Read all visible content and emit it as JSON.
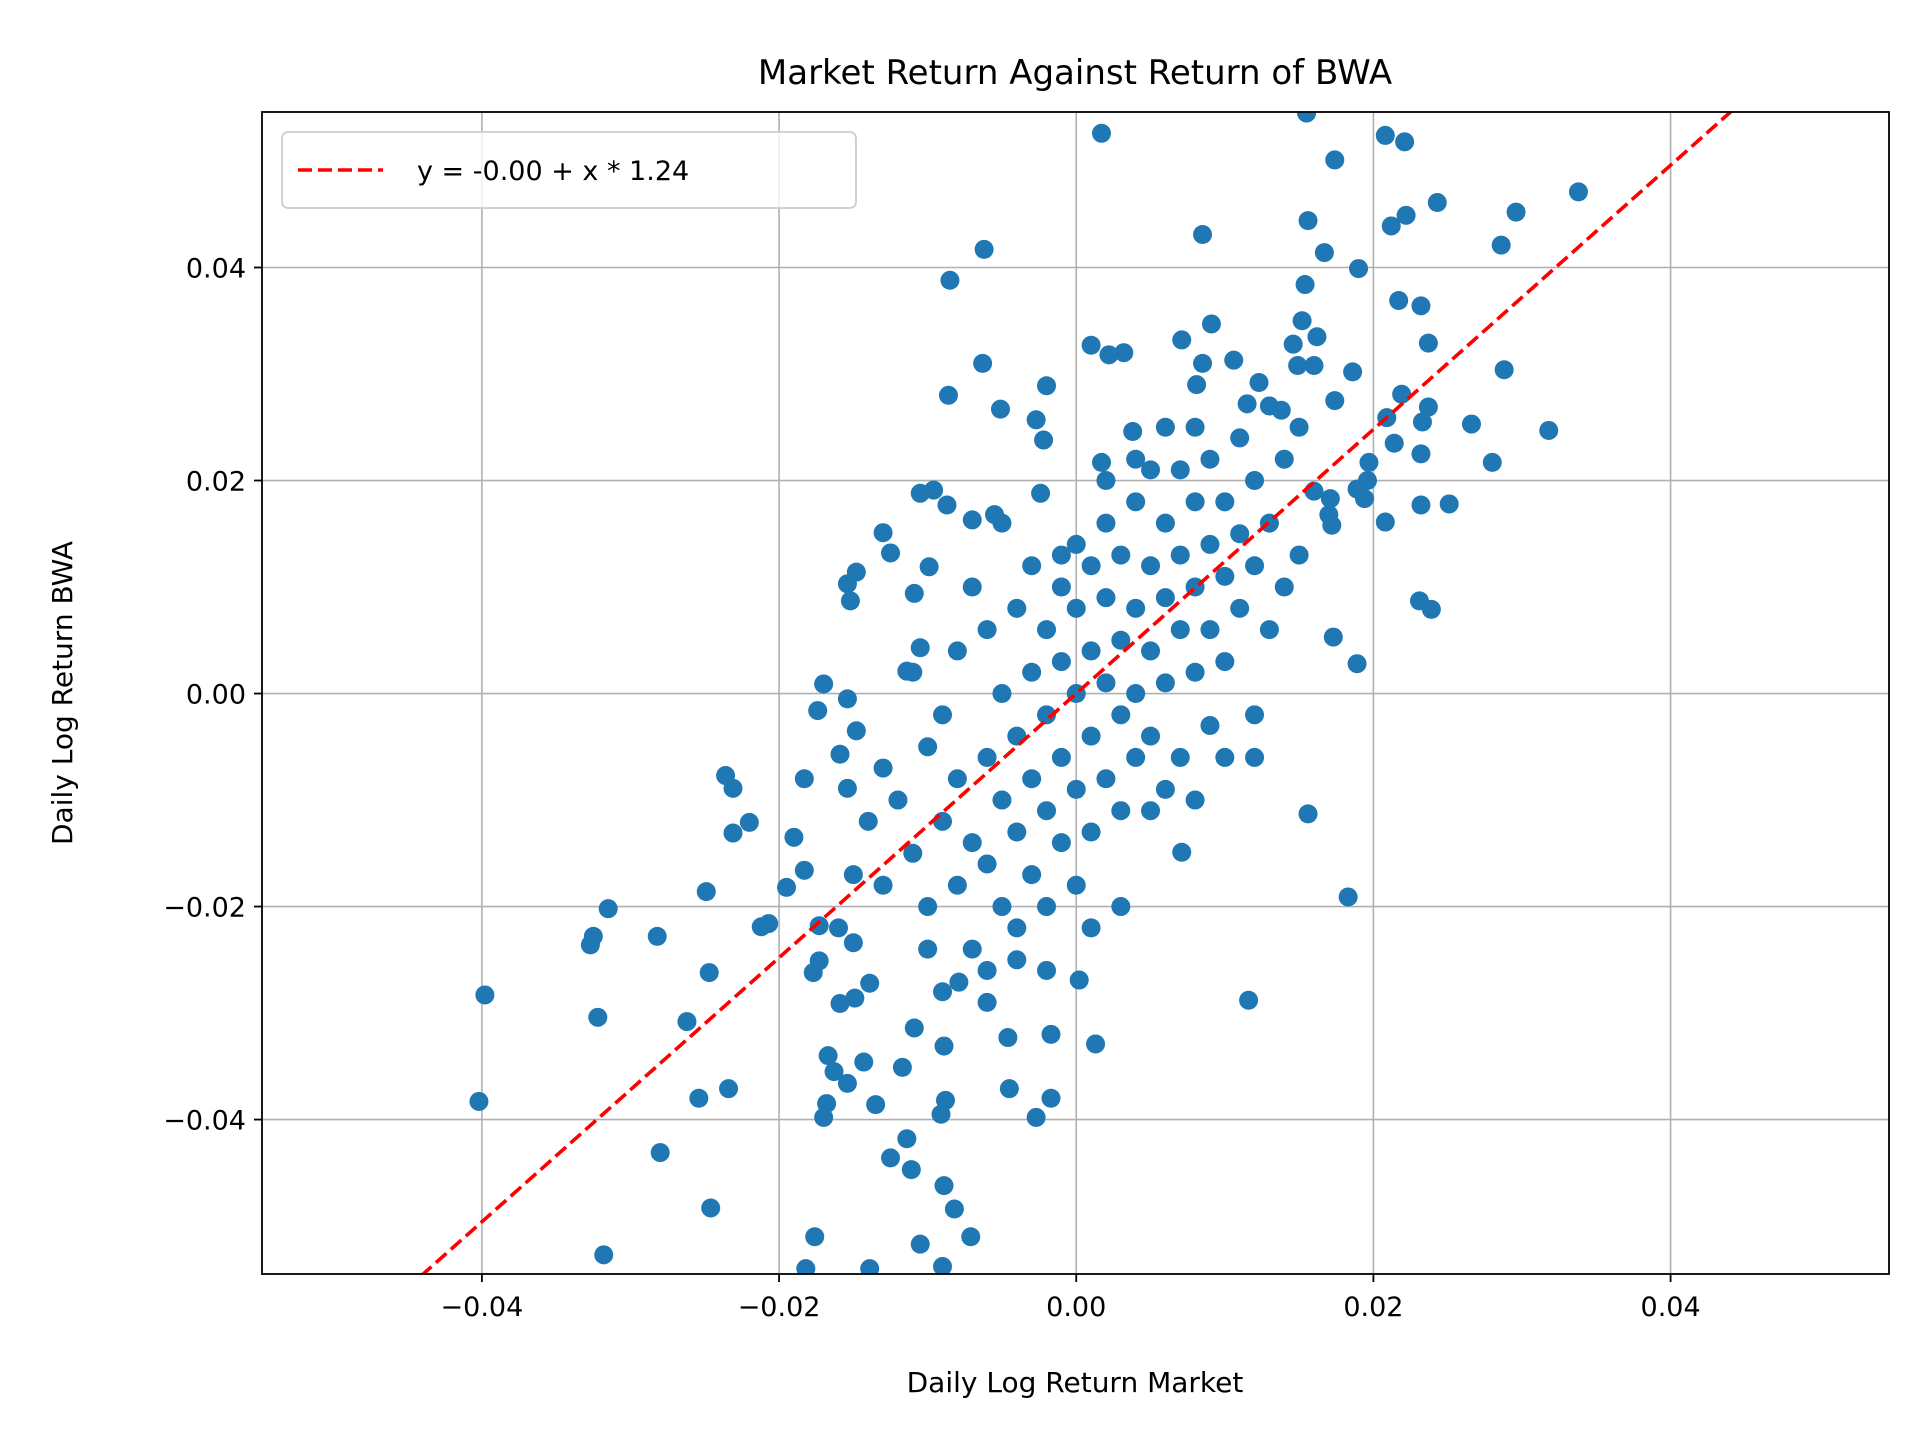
{
  "chart_data": {
    "type": "scatter",
    "title": "Market Return Against Return of BWA",
    "xlabel": "Daily Log Return Market",
    "ylabel": "Daily Log Return BWA",
    "xlim": [
      -0.0548,
      0.0547
    ],
    "ylim": [
      -0.0545,
      0.0546
    ],
    "grid": true,
    "legend_placement": "top-left",
    "xticks": [
      -0.04,
      -0.02,
      0.0,
      0.02,
      0.04
    ],
    "xtick_labels": [
      "−0.04",
      "−0.02",
      "0.00",
      "0.02",
      "0.04"
    ],
    "yticks": [
      -0.04,
      -0.02,
      0.0,
      0.02,
      0.04
    ],
    "ytick_labels": [
      "−0.04",
      "−0.02",
      "0.00",
      "0.02",
      "0.04"
    ],
    "colors": {
      "points": "#1f77b4",
      "fit_line": "#ff0000"
    },
    "fit_line": {
      "label": "y = -0.00 + x * 1.24",
      "intercept": 0.0,
      "slope": 1.24,
      "style": "dashed",
      "x_range": [
        -0.0441,
        0.0441
      ]
    },
    "points": [
      [
        0.0017,
        0.0526
      ],
      [
        0.0155,
        0.0545
      ],
      [
        0.0208,
        0.0524
      ],
      [
        0.0221,
        0.0518
      ],
      [
        0.0174,
        0.0501
      ],
      [
        0.0338,
        0.0471
      ],
      [
        0.0243,
        0.0461
      ],
      [
        0.0296,
        0.0452
      ],
      [
        0.0222,
        0.0449
      ],
      [
        0.0212,
        0.0439
      ],
      [
        0.0156,
        0.0444
      ],
      [
        0.0085,
        0.0431
      ],
      [
        0.0286,
        0.0421
      ],
      [
        -0.0062,
        0.0417
      ],
      [
        0.0167,
        0.0414
      ],
      [
        0.019,
        0.0399
      ],
      [
        -0.0085,
        0.0388
      ],
      [
        0.0154,
        0.0384
      ],
      [
        0.0217,
        0.0369
      ],
      [
        0.0232,
        0.0364
      ],
      [
        0.0091,
        0.0347
      ],
      [
        0.0152,
        0.035
      ],
      [
        0.0162,
        0.0335
      ],
      [
        0.0071,
        0.0332
      ],
      [
        0.0146,
        0.0328
      ],
      [
        0.0237,
        0.0329
      ],
      [
        0.001,
        0.0327
      ],
      [
        0.0032,
        0.032
      ],
      [
        0.0022,
        0.0318
      ],
      [
        -0.0063,
        0.031
      ],
      [
        0.0085,
        0.031
      ],
      [
        0.0106,
        0.0313
      ],
      [
        0.0149,
        0.0308
      ],
      [
        0.016,
        0.0308
      ],
      [
        0.0288,
        0.0304
      ],
      [
        0.0186,
        0.0302
      ],
      [
        0.0123,
        0.0292
      ],
      [
        -0.002,
        0.0289
      ],
      [
        0.0081,
        0.029
      ],
      [
        -0.0086,
        0.028
      ],
      [
        0.0219,
        0.0281
      ],
      [
        0.0115,
        0.0272
      ],
      [
        0.0174,
        0.0275
      ],
      [
        0.0237,
        0.0269
      ],
      [
        -0.0051,
        0.0267
      ],
      [
        0.0138,
        0.0266
      ],
      [
        -0.0027,
        0.0257
      ],
      [
        0.0209,
        0.0259
      ],
      [
        0.0233,
        0.0255
      ],
      [
        0.0266,
        0.0253
      ],
      [
        0.0318,
        0.0247
      ],
      [
        0.0038,
        0.0246
      ],
      [
        -0.0022,
        0.0238
      ],
      [
        0.015,
        0.025
      ],
      [
        0.0214,
        0.0235
      ],
      [
        0.0197,
        0.0217
      ],
      [
        0.0232,
        0.0225
      ],
      [
        0.028,
        0.0217
      ],
      [
        0.0017,
        0.0217
      ],
      [
        0.0196,
        0.02
      ],
      [
        0.0189,
        0.0192
      ],
      [
        0.0194,
        0.0183
      ],
      [
        0.0232,
        0.0177
      ],
      [
        0.0251,
        0.0178
      ],
      [
        -0.0105,
        0.0188
      ],
      [
        -0.0096,
        0.0191
      ],
      [
        -0.0087,
        0.0177
      ],
      [
        -0.0024,
        0.0188
      ],
      [
        -0.007,
        0.0163
      ],
      [
        -0.0055,
        0.0168
      ],
      [
        0.0208,
        0.0161
      ],
      [
        -0.013,
        0.0151
      ],
      [
        -0.0125,
        0.0132
      ],
      [
        0.017,
        0.0168
      ],
      [
        0.0172,
        0.0158
      ],
      [
        0.0171,
        0.0183
      ],
      [
        -0.0099,
        0.0119
      ],
      [
        -0.0148,
        0.0114
      ],
      [
        -0.0154,
        0.0103
      ],
      [
        -0.0152,
        0.0087
      ],
      [
        -0.0109,
        0.0094
      ],
      [
        0.0231,
        0.0087
      ],
      [
        0.0239,
        0.0079
      ],
      [
        0.0173,
        0.0053
      ],
      [
        0.0189,
        0.0028
      ],
      [
        -0.0105,
        0.0043
      ],
      [
        -0.0114,
        0.0021
      ],
      [
        -0.017,
        0.0009
      ],
      [
        -0.0154,
        -0.0005
      ],
      [
        -0.0174,
        -0.0016
      ],
      [
        -0.0148,
        -0.0035
      ],
      [
        -0.0159,
        -0.0057
      ],
      [
        -0.0236,
        -0.0077
      ],
      [
        -0.0231,
        -0.0089
      ],
      [
        -0.0183,
        -0.008
      ],
      [
        -0.0154,
        -0.0089
      ],
      [
        -0.022,
        -0.0121
      ],
      [
        -0.0231,
        -0.0131
      ],
      [
        -0.019,
        -0.0135
      ],
      [
        0.0156,
        -0.0113
      ],
      [
        0.0071,
        -0.0149
      ],
      [
        -0.0183,
        -0.0166
      ],
      [
        -0.0195,
        -0.0182
      ],
      [
        -0.0249,
        -0.0186
      ],
      [
        0.0183,
        -0.0191
      ],
      [
        -0.0315,
        -0.0202
      ],
      [
        -0.0207,
        -0.0216
      ],
      [
        -0.0212,
        -0.0219
      ],
      [
        -0.0325,
        -0.0228
      ],
      [
        -0.0327,
        -0.0236
      ],
      [
        -0.0282,
        -0.0228
      ],
      [
        -0.0173,
        -0.0218
      ],
      [
        -0.015,
        -0.0234
      ],
      [
        -0.0173,
        -0.0251
      ],
      [
        -0.0177,
        -0.0262
      ],
      [
        -0.0247,
        -0.0262
      ],
      [
        -0.0139,
        -0.0272
      ],
      [
        -0.0398,
        -0.0283
      ],
      [
        -0.0079,
        -0.0271
      ],
      [
        0.0002,
        -0.0269
      ],
      [
        0.0116,
        -0.0288
      ],
      [
        -0.0149,
        -0.0286
      ],
      [
        -0.0159,
        -0.0291
      ],
      [
        -0.0322,
        -0.0304
      ],
      [
        -0.0262,
        -0.0308
      ],
      [
        -0.0109,
        -0.0314
      ],
      [
        -0.0017,
        -0.032
      ],
      [
        -0.0046,
        -0.0323
      ],
      [
        -0.0089,
        -0.0331
      ],
      [
        0.0013,
        -0.0329
      ],
      [
        -0.0167,
        -0.034
      ],
      [
        -0.0143,
        -0.0346
      ],
      [
        -0.0117,
        -0.0351
      ],
      [
        -0.0163,
        -0.0355
      ],
      [
        -0.0154,
        -0.0366
      ],
      [
        -0.0234,
        -0.0371
      ],
      [
        -0.0045,
        -0.0371
      ],
      [
        -0.0402,
        -0.0383
      ],
      [
        -0.0254,
        -0.038
      ],
      [
        -0.0088,
        -0.0382
      ],
      [
        -0.0017,
        -0.038
      ],
      [
        -0.0135,
        -0.0386
      ],
      [
        -0.0168,
        -0.0385
      ],
      [
        -0.0091,
        -0.0395
      ],
      [
        -0.0027,
        -0.0398
      ],
      [
        -0.017,
        -0.0398
      ],
      [
        -0.028,
        -0.0431
      ],
      [
        -0.0114,
        -0.0418
      ],
      [
        -0.0125,
        -0.0436
      ],
      [
        -0.0111,
        -0.0447
      ],
      [
        -0.0089,
        -0.0462
      ],
      [
        -0.0082,
        -0.0484
      ],
      [
        -0.0246,
        -0.0483
      ],
      [
        -0.0176,
        -0.051
      ],
      [
        -0.0105,
        -0.0517
      ],
      [
        -0.0071,
        -0.051
      ],
      [
        -0.0318,
        -0.0527
      ],
      [
        -0.0182,
        -0.054
      ],
      [
        -0.0139,
        -0.054
      ],
      [
        -0.009,
        -0.0538
      ],
      [
        -0.012,
        -0.01
      ],
      [
        -0.011,
        -0.015
      ],
      [
        -0.01,
        -0.005
      ],
      [
        -0.01,
        -0.02
      ],
      [
        -0.009,
        -0.012
      ],
      [
        -0.009,
        -0.002
      ],
      [
        -0.008,
        -0.018
      ],
      [
        -0.008,
        -0.008
      ],
      [
        -0.008,
        0.004
      ],
      [
        -0.007,
        -0.014
      ],
      [
        -0.007,
        -0.024
      ],
      [
        -0.007,
        0.01
      ],
      [
        -0.006,
        -0.006
      ],
      [
        -0.006,
        -0.016
      ],
      [
        -0.006,
        0.006
      ],
      [
        -0.006,
        -0.026
      ],
      [
        -0.005,
        -0.01
      ],
      [
        -0.005,
        0.0
      ],
      [
        -0.005,
        -0.02
      ],
      [
        -0.005,
        0.016
      ],
      [
        -0.004,
        -0.004
      ],
      [
        -0.004,
        -0.013
      ],
      [
        -0.004,
        0.008
      ],
      [
        -0.004,
        -0.022
      ],
      [
        -0.003,
        -0.008
      ],
      [
        -0.003,
        0.002
      ],
      [
        -0.003,
        -0.017
      ],
      [
        -0.003,
        0.012
      ],
      [
        -0.002,
        -0.002
      ],
      [
        -0.002,
        -0.011
      ],
      [
        -0.002,
        0.006
      ],
      [
        -0.002,
        -0.02
      ],
      [
        -0.001,
        -0.006
      ],
      [
        -0.001,
        0.003
      ],
      [
        -0.001,
        -0.014
      ],
      [
        -0.001,
        0.013
      ],
      [
        0.0,
        0.0
      ],
      [
        0.0,
        -0.009
      ],
      [
        0.0,
        0.008
      ],
      [
        0.0,
        -0.018
      ],
      [
        0.001,
        0.004
      ],
      [
        0.001,
        -0.004
      ],
      [
        0.001,
        0.012
      ],
      [
        0.001,
        -0.013
      ],
      [
        0.002,
        0.001
      ],
      [
        0.002,
        0.009
      ],
      [
        0.002,
        -0.008
      ],
      [
        0.002,
        0.016
      ],
      [
        0.003,
        0.005
      ],
      [
        0.003,
        -0.002
      ],
      [
        0.003,
        0.013
      ],
      [
        0.003,
        -0.011
      ],
      [
        0.004,
        0.008
      ],
      [
        0.004,
        0.0
      ],
      [
        0.004,
        0.018
      ],
      [
        0.004,
        -0.006
      ],
      [
        0.005,
        0.012
      ],
      [
        0.005,
        0.004
      ],
      [
        0.005,
        0.021
      ],
      [
        0.005,
        -0.004
      ],
      [
        0.006,
        0.009
      ],
      [
        0.006,
        0.016
      ],
      [
        0.006,
        0.001
      ],
      [
        0.006,
        -0.009
      ],
      [
        0.007,
        0.013
      ],
      [
        0.007,
        0.006
      ],
      [
        0.007,
        0.021
      ],
      [
        0.007,
        -0.006
      ],
      [
        0.008,
        0.01
      ],
      [
        0.008,
        0.018
      ],
      [
        0.008,
        0.002
      ],
      [
        0.009,
        0.014
      ],
      [
        0.009,
        0.006
      ],
      [
        0.009,
        0.022
      ],
      [
        0.009,
        -0.003
      ],
      [
        0.01,
        0.011
      ],
      [
        0.01,
        0.018
      ],
      [
        0.01,
        0.003
      ],
      [
        0.011,
        0.015
      ],
      [
        0.011,
        0.008
      ],
      [
        0.011,
        0.024
      ],
      [
        0.012,
        0.012
      ],
      [
        0.012,
        -0.002
      ],
      [
        0.012,
        0.02
      ],
      [
        0.013,
        0.006
      ],
      [
        0.013,
        0.016
      ],
      [
        0.014,
        0.01
      ],
      [
        0.014,
        0.022
      ],
      [
        0.015,
        0.013
      ],
      [
        0.016,
        0.019
      ],
      [
        -0.013,
        -0.007
      ],
      [
        -0.013,
        -0.018
      ],
      [
        -0.014,
        -0.012
      ],
      [
        -0.015,
        -0.017
      ],
      [
        -0.011,
        0.002
      ],
      [
        -0.016,
        -0.022
      ],
      [
        -0.01,
        -0.024
      ],
      [
        -0.009,
        -0.028
      ],
      [
        -0.006,
        -0.029
      ],
      [
        -0.004,
        -0.025
      ],
      [
        -0.002,
        -0.026
      ],
      [
        0.001,
        -0.022
      ],
      [
        0.003,
        -0.02
      ],
      [
        0.005,
        -0.011
      ],
      [
        0.008,
        -0.01
      ],
      [
        0.01,
        -0.006
      ],
      [
        0.012,
        -0.006
      ],
      [
        0.004,
        0.022
      ],
      [
        0.002,
        0.02
      ],
      [
        -0.001,
        0.01
      ],
      [
        0.0,
        0.014
      ],
      [
        0.006,
        0.025
      ],
      [
        0.008,
        0.025
      ],
      [
        0.013,
        0.027
      ]
    ]
  }
}
